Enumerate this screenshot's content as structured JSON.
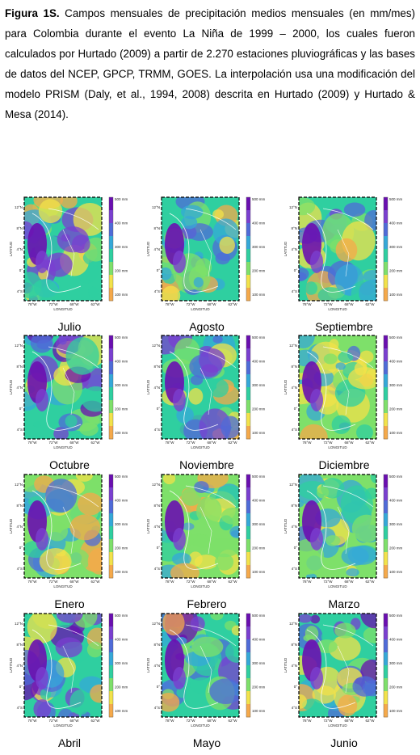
{
  "caption": {
    "label": "Figura 1S.",
    "text": " Campos mensuales de precipitación medios mensuales (en mm/mes) para Colombia durante el evento La Niña de 1999 – 2000, los cuales fueron calculados por Hurtado (2009) a partir de 2.270 estaciones pluviográficas y las bases de datos del NCEP, GPCP, TRMM, GOES. La interpolación usa una modificación del modelo PRISM (Daly, et al., 1994, 2008) descrita en Hurtado (2009) y Hurtado & Mesa (2014)."
  },
  "axes": {
    "ylabel": "LATITUD",
    "xlabel": "LONGITUD",
    "lat_ticks": [
      "12°N",
      "8°N",
      "4°N",
      "0°",
      "4°S"
    ],
    "lon_ticks": [
      "78°W",
      "72°W",
      "68°W",
      "62°W"
    ]
  },
  "colorbar": {
    "ticks": [
      "500 mm",
      "400 mm",
      "300 mm",
      "200 mm",
      "100 mm"
    ],
    "colors": [
      "#f5a94a",
      "#f2e24a",
      "#7ee06a",
      "#2fcfa0",
      "#35a8d8",
      "#4f6bd8",
      "#7a3fd0",
      "#6a0fb0"
    ]
  },
  "panels": [
    {
      "month": "Julio",
      "wet": 0.55
    },
    {
      "month": "Agosto",
      "wet": 0.5
    },
    {
      "month": "Septiembre",
      "wet": 0.5
    },
    {
      "month": "Octubre",
      "wet": 0.6
    },
    {
      "month": "Noviembre",
      "wet": 0.55
    },
    {
      "month": "Diciembre",
      "wet": 0.45
    },
    {
      "month": "Enero",
      "wet": 0.3
    },
    {
      "month": "Febrero",
      "wet": 0.28
    },
    {
      "month": "Marzo",
      "wet": 0.32
    },
    {
      "month": "Abril",
      "wet": 0.55
    },
    {
      "month": "Mayo",
      "wet": 0.7
    },
    {
      "month": "Junio",
      "wet": 0.6
    }
  ]
}
